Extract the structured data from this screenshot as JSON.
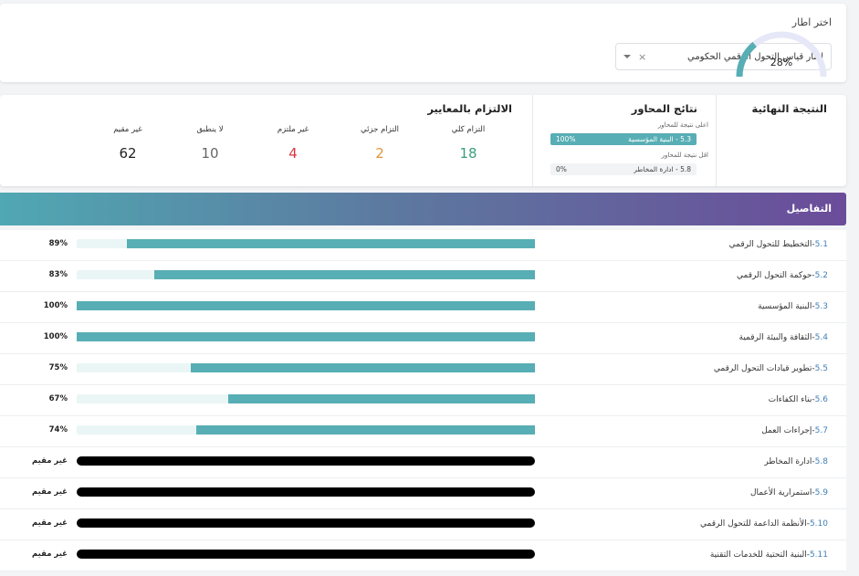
{
  "framework": {
    "label": "اختر اطار",
    "selected": "إطار قياس التحول الرقمي الحكومي",
    "clear_symbol": "×"
  },
  "final_result": {
    "title": "النتيجة النهائية",
    "value": "28%",
    "percent": 28
  },
  "axes": {
    "title": "نتائج المحاور",
    "highest_note": "اعلى نتيجة للمحاور",
    "highest_name": "5.3 - البنية المؤسسية",
    "highest_value": "100%",
    "lowest_note": "اقل نتيجة للمحاور",
    "lowest_name": "5.8 - ادارة المخاطر",
    "lowest_value": "0%"
  },
  "compliance": {
    "title": "الالتزام بالمعايير",
    "stats": [
      {
        "label": "التزام كلي",
        "value": "18",
        "color": "#3b9e7e"
      },
      {
        "label": "التزام جزئي",
        "value": "2",
        "color": "#e0963a"
      },
      {
        "label": "غير ملتزم",
        "value": "4",
        "color": "#d9363e"
      },
      {
        "label": "لا ينطبق",
        "value": "10",
        "color": "#666666"
      },
      {
        "label": "غير مقيم",
        "value": "62",
        "color": "#222222"
      }
    ]
  },
  "details": {
    "title": "التفاصيل",
    "rows": [
      {
        "code": "5.1",
        "name": "-التخطيط للتحول الرقمي",
        "value": "89%",
        "percent": 89,
        "assessed": true
      },
      {
        "code": "5.2",
        "name": "-حوكمة التحول الرقمي",
        "value": "83%",
        "percent": 83,
        "assessed": true
      },
      {
        "code": "5.3",
        "name": "-البنية المؤسسية",
        "value": "100%",
        "percent": 100,
        "assessed": true
      },
      {
        "code": "5.4",
        "name": "-الثقافة والبيئة الرقمية",
        "value": "100%",
        "percent": 100,
        "assessed": true
      },
      {
        "code": "5.5",
        "name": "-تطوير قيادات التحول الرقمي",
        "value": "75%",
        "percent": 75,
        "assessed": true
      },
      {
        "code": "5.6",
        "name": "-بناء الكفاءات",
        "value": "67%",
        "percent": 67,
        "assessed": true
      },
      {
        "code": "5.7",
        "name": "-إجراءات العمل",
        "value": "74%",
        "percent": 74,
        "assessed": true
      },
      {
        "code": "5.8",
        "name": "-ادارة المخاطر",
        "value": "غير مقيم",
        "percent": 0,
        "assessed": false
      },
      {
        "code": "5.9",
        "name": "-استمرارية الأعمال",
        "value": "غير مقيم",
        "percent": 0,
        "assessed": false
      },
      {
        "code": "5.10",
        "name": "-الأنظمة الداعمة للتحول الرقمي",
        "value": "غير مقيم",
        "percent": 0,
        "assessed": false
      },
      {
        "code": "5.11",
        "name": "-البنية التحتية للخدمات التقنية",
        "value": "غير مقيم",
        "percent": 0,
        "assessed": false
      }
    ]
  }
}
